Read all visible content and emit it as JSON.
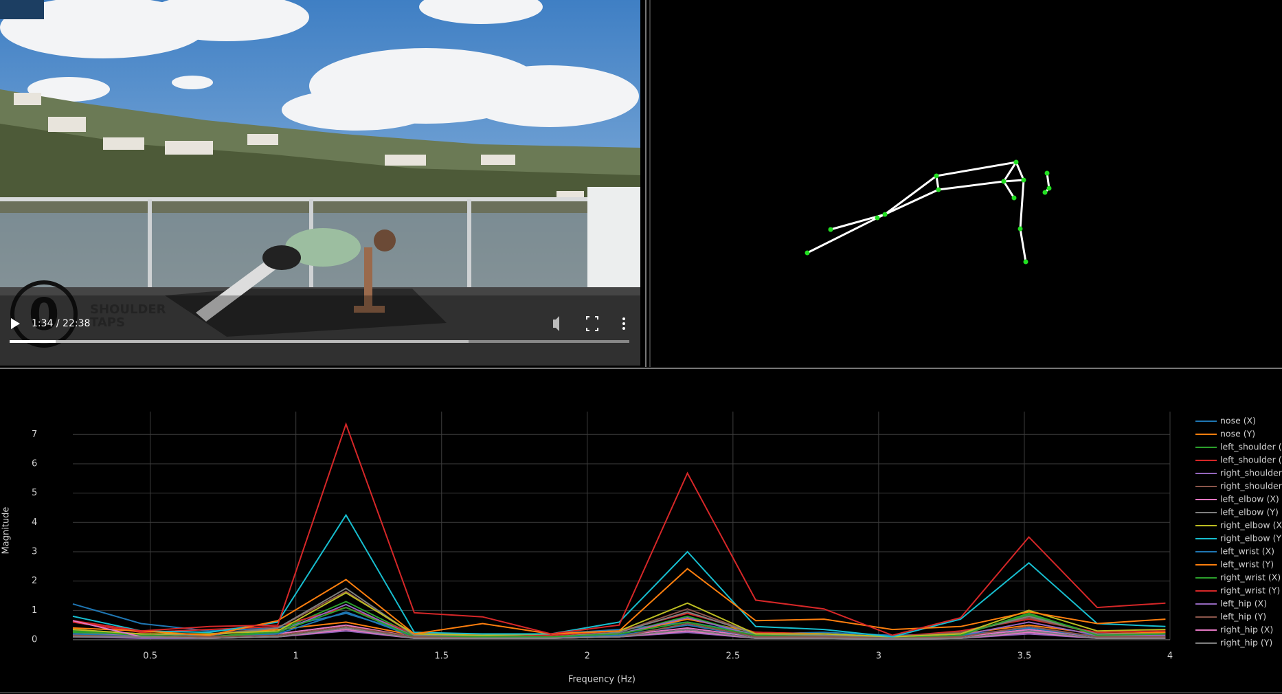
{
  "video": {
    "overlay_number": "0",
    "overlay_title_line1": "SHOULDER",
    "overlay_title_line2": "TAPS",
    "time": "1:34 / 22:38"
  },
  "chart_data": {
    "type": "line",
    "xlabel": "Frequency (Hz)",
    "ylabel": "Magnitude",
    "x": [
      0.234375,
      0.46875,
      0.703125,
      0.9375,
      1.171875,
      1.40625,
      1.640625,
      1.875,
      2.109375,
      2.34375,
      2.578125,
      2.8125,
      3.046875,
      3.28125,
      3.515625,
      3.75,
      3.984375
    ],
    "xlim": [
      0.234375,
      4
    ],
    "xticks": [
      0.5,
      1,
      1.5,
      2,
      2.5,
      3,
      3.5,
      4
    ],
    "ylim": [
      0,
      7.78
    ],
    "yticks": [
      0,
      1,
      2,
      3,
      4,
      5,
      6,
      7
    ],
    "grid": true,
    "series": [
      {
        "name": "nose (X)",
        "color": "#1f77b4",
        "values": [
          1.22,
          0.55,
          0.3,
          0.4,
          0.9,
          0.2,
          0.15,
          0.2,
          0.35,
          0.6,
          0.2,
          0.25,
          0.15,
          0.2,
          0.3,
          0.15,
          0.25
        ]
      },
      {
        "name": "nose (Y)",
        "color": "#ff7f0e",
        "values": [
          0.3,
          0.2,
          0.2,
          0.35,
          0.6,
          0.15,
          0.15,
          0.1,
          0.2,
          0.7,
          0.25,
          0.2,
          0.1,
          0.2,
          0.5,
          0.2,
          0.25
        ]
      },
      {
        "name": "left_shoulder (X)",
        "color": "#2ca02c",
        "values": [
          0.25,
          0.15,
          0.1,
          0.3,
          1.3,
          0.15,
          0.1,
          0.1,
          0.2,
          0.8,
          0.15,
          0.15,
          0.1,
          0.2,
          0.85,
          0.2,
          0.2
        ]
      },
      {
        "name": "left_shoulder (Y)",
        "color": "#d62728",
        "values": [
          0.6,
          0.25,
          0.35,
          0.45,
          1.1,
          0.2,
          0.2,
          0.15,
          0.3,
          0.9,
          0.25,
          0.2,
          0.1,
          0.3,
          0.7,
          0.25,
          0.3
        ]
      },
      {
        "name": "right_shoulder (X)",
        "color": "#9467bd",
        "values": [
          0.2,
          0.15,
          0.1,
          0.25,
          1.2,
          0.1,
          0.1,
          0.1,
          0.2,
          0.75,
          0.15,
          0.1,
          0.05,
          0.15,
          0.6,
          0.15,
          0.15
        ]
      },
      {
        "name": "right_shoulder (Y)",
        "color": "#8c564b",
        "values": [
          0.3,
          0.2,
          0.2,
          0.4,
          1.65,
          0.15,
          0.15,
          0.1,
          0.25,
          1.05,
          0.2,
          0.2,
          0.1,
          0.25,
          0.75,
          0.2,
          0.2
        ]
      },
      {
        "name": "left_elbow (X)",
        "color": "#e377c2",
        "values": [
          0.15,
          0.1,
          0.1,
          0.2,
          0.5,
          0.1,
          0.05,
          0.05,
          0.15,
          0.4,
          0.1,
          0.1,
          0.05,
          0.1,
          0.35,
          0.1,
          0.1
        ]
      },
      {
        "name": "left_elbow (Y)",
        "color": "#7f7f7f",
        "values": [
          0.35,
          0.2,
          0.15,
          0.4,
          1.75,
          0.15,
          0.1,
          0.1,
          0.25,
          0.95,
          0.2,
          0.15,
          0.1,
          0.2,
          0.8,
          0.2,
          0.2
        ]
      },
      {
        "name": "right_elbow (X)",
        "color": "#bcbd22",
        "values": [
          0.35,
          0.2,
          0.2,
          0.3,
          1.6,
          0.2,
          0.15,
          0.2,
          0.3,
          1.25,
          0.2,
          0.2,
          0.1,
          0.2,
          1.0,
          0.3,
          0.35
        ]
      },
      {
        "name": "right_elbow (Y)",
        "color": "#17becf",
        "values": [
          0.8,
          0.3,
          0.25,
          0.6,
          4.25,
          0.25,
          0.2,
          0.2,
          0.6,
          3.0,
          0.45,
          0.35,
          0.1,
          0.7,
          2.62,
          0.55,
          0.45
        ]
      },
      {
        "name": "left_wrist (X)",
        "color": "#1f77b4",
        "values": [
          0.2,
          0.1,
          0.1,
          0.2,
          0.95,
          0.1,
          0.1,
          0.05,
          0.15,
          0.5,
          0.1,
          0.1,
          0.05,
          0.15,
          0.4,
          0.1,
          0.1
        ]
      },
      {
        "name": "left_wrist (Y)",
        "color": "#ff7f0e",
        "values": [
          0.4,
          0.3,
          0.15,
          0.65,
          2.05,
          0.2,
          0.55,
          0.2,
          0.3,
          2.42,
          0.65,
          0.7,
          0.35,
          0.45,
          0.95,
          0.55,
          0.7
        ]
      },
      {
        "name": "right_wrist (X)",
        "color": "#2ca02c",
        "values": [
          0.3,
          0.15,
          0.1,
          0.25,
          1.1,
          0.1,
          0.1,
          0.1,
          0.2,
          0.6,
          0.15,
          0.1,
          0.05,
          0.15,
          0.9,
          0.15,
          0.2
        ]
      },
      {
        "name": "right_wrist (Y)",
        "color": "#d62728",
        "values": [
          0.65,
          0.3,
          0.45,
          0.5,
          7.35,
          0.92,
          0.78,
          0.2,
          0.5,
          5.68,
          1.35,
          1.05,
          0.15,
          0.75,
          3.5,
          1.1,
          1.25
        ]
      },
      {
        "name": "left_hip (X)",
        "color": "#9467bd",
        "values": [
          0.1,
          0.05,
          0.05,
          0.1,
          0.3,
          0.05,
          0.05,
          0.05,
          0.1,
          0.25,
          0.05,
          0.05,
          0.03,
          0.05,
          0.2,
          0.05,
          0.05
        ]
      },
      {
        "name": "left_hip (Y)",
        "color": "#8c564b",
        "values": [
          0.15,
          0.1,
          0.1,
          0.15,
          0.45,
          0.1,
          0.05,
          0.05,
          0.1,
          0.55,
          0.1,
          0.1,
          0.05,
          0.1,
          0.45,
          0.1,
          0.1
        ]
      },
      {
        "name": "right_hip (X)",
        "color": "#e377c2",
        "values": [
          0.65,
          0.1,
          0.05,
          0.1,
          0.35,
          0.05,
          0.05,
          0.05,
          0.1,
          0.3,
          0.05,
          0.05,
          0.03,
          0.05,
          0.25,
          0.05,
          0.05
        ]
      },
      {
        "name": "right_hip (Y)",
        "color": "#7f7f7f",
        "values": [
          0.1,
          0.1,
          0.05,
          0.1,
          0.4,
          0.05,
          0.05,
          0.05,
          0.1,
          0.35,
          0.05,
          0.05,
          0.03,
          0.05,
          0.3,
          0.05,
          0.05
        ]
      }
    ]
  }
}
